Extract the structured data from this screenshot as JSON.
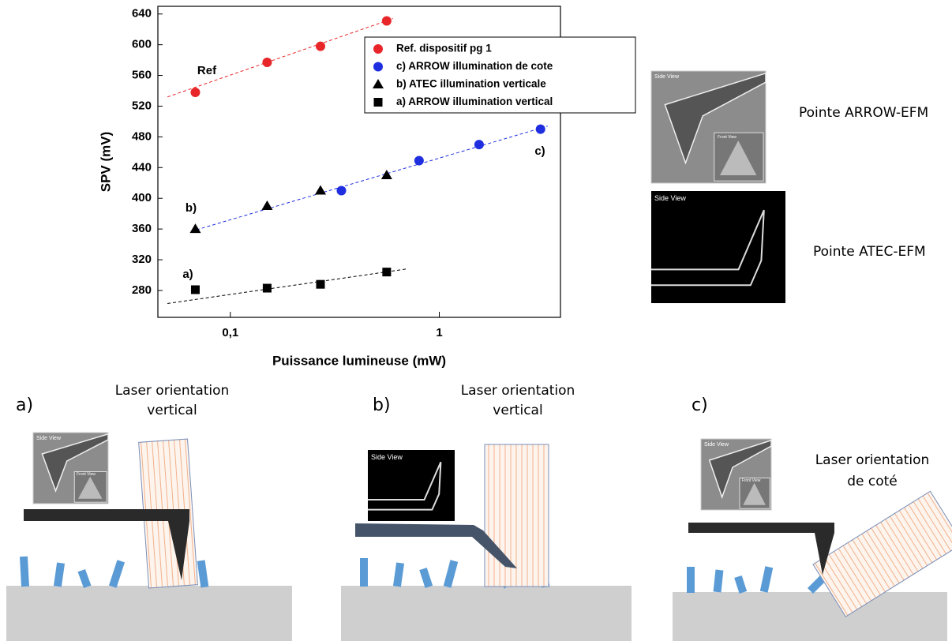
{
  "chart_data": {
    "type": "scatter",
    "x_scale": "log",
    "xlabel": "Puissance lumineuse (mW)",
    "ylabel": "SPV (mV)",
    "xlim": [
      0.045,
      3.8
    ],
    "ylim": [
      245,
      650
    ],
    "xticks": [
      {
        "value": 0.1,
        "label": "0,1"
      },
      1
    ],
    "yticks": [
      280,
      320,
      360,
      400,
      440,
      480,
      520,
      560,
      600,
      640
    ],
    "series": [
      {
        "name": "Ref. dispositif pg 1",
        "color": "#e8262a",
        "marker": "circle",
        "x": [
          0.068,
          0.15,
          0.27,
          0.56
        ],
        "values": [
          538,
          577,
          598,
          631
        ],
        "fit_x": [
          0.05,
          0.6
        ],
        "fit_y": [
          532,
          634
        ]
      },
      {
        "name": "c) ARROW illumination de cote",
        "color": "#1f2fe0",
        "marker": "circle",
        "x": [
          0.34,
          0.8,
          1.55,
          3.05
        ],
        "values": [
          410,
          449,
          470,
          490
        ],
        "fit_x": [
          0.065,
          3.3
        ],
        "fit_y": [
          357,
          494
        ]
      },
      {
        "name": "b) ATEC illumination verticale",
        "color": "#000000",
        "marker": "triangle",
        "x": [
          0.068,
          0.15,
          0.27,
          0.56
        ],
        "values": [
          360,
          390,
          410,
          430
        ]
      },
      {
        "name": "a) ARROW illumination vertical",
        "color": "#000000",
        "marker": "square",
        "x": [
          0.068,
          0.15,
          0.27,
          0.56
        ],
        "values": [
          281,
          283,
          288,
          304
        ],
        "fit_x": [
          0.05,
          0.7
        ],
        "fit_y": [
          263,
          308
        ]
      }
    ],
    "annotations": [
      "Ref",
      "b)",
      "a)",
      "c)"
    ]
  },
  "figure": {
    "side_view": "Side View",
    "front_view": "Front View",
    "tips": [
      "Pointe ARROW-EFM",
      "Pointe ATEC-EFM"
    ],
    "panels": [
      {
        "label": "a)",
        "laser": [
          "Laser orientation",
          "vertical"
        ]
      },
      {
        "label": "b)",
        "laser": [
          "Laser orientation",
          "vertical"
        ]
      },
      {
        "label": "c)",
        "laser": [
          "Laser orientation",
          "de coté"
        ]
      }
    ]
  }
}
